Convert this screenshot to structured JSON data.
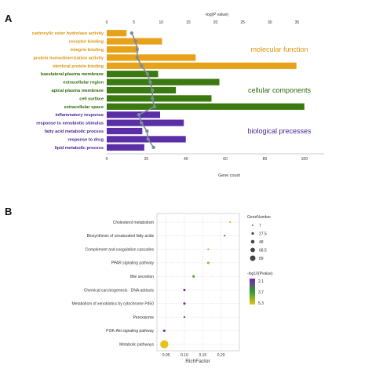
{
  "panels": {
    "a_label": "A",
    "b_label": "B"
  },
  "chart_data": [
    {
      "type": "bar",
      "orientation": "horizontal",
      "panel": "A",
      "categories": [
        "carboxylic ester hydrolase activity",
        "receptor binding",
        "integrin binding",
        "protein homodimerization activity",
        "identical protein binding",
        "basolateral plasma membrane",
        "extracellular region",
        "apical plasma membrane",
        "cell surface",
        "extracellular space",
        "inflammatory response",
        "response to xenobiotic stimulus",
        "fatty acid metabolic process",
        "response to drug",
        "lipid metabolic process"
      ],
      "groups": [
        {
          "name": "molecular function",
          "color": "#E8A21A",
          "label_color": "#D9960E",
          "start": 0,
          "end": 4
        },
        {
          "name": "cellular components",
          "color": "#3B7A10",
          "label_color": "#2E6A0A",
          "start": 5,
          "end": 9
        },
        {
          "name": "biological precesses",
          "color": "#5B2DA6",
          "label_color": "#4B2494",
          "start": 10,
          "end": 14
        }
      ],
      "values": [
        10,
        28,
        16,
        45,
        96,
        26,
        57,
        35,
        53,
        100,
        27,
        39,
        18,
        40,
        19
      ],
      "xlabel": "Gene count",
      "xlim": [
        0,
        110
      ],
      "xticks": [
        0,
        20,
        40,
        60,
        80,
        100
      ],
      "overlay": {
        "type": "line",
        "axis_label": "-log(P value)",
        "xlim": [
          0,
          40
        ],
        "xticks": [
          0,
          5,
          10,
          15,
          20,
          25,
          30,
          35
        ],
        "values": [
          4.6,
          5.3,
          5.6,
          5.6,
          6.4,
          7.5,
          8.0,
          8.4,
          8.4,
          8.8,
          5.9,
          6.4,
          7.4,
          7.6,
          8.6
        ],
        "color": "#7A8E99"
      }
    },
    {
      "type": "scatter",
      "panel": "B",
      "categories": [
        "Cholesterol metabolism",
        "Biosynthesis of unsaturated fatty acids",
        "Complement and coagulation cascades",
        "PPAR signaling pathway",
        "Bile secretion",
        "Chemical carcinogenesis - DNA adducts",
        "Metabolism of xenobiotics by cytochrome P450",
        "Peroxisome",
        "PI3K-Akt signaling pathway",
        "Metabolic pathways"
      ],
      "rich_factor": [
        0.225,
        0.21,
        0.165,
        0.165,
        0.125,
        0.1,
        0.1,
        0.1,
        0.045,
        0.045
      ],
      "gene_number": [
        7,
        7,
        7,
        8,
        8,
        8,
        8,
        7,
        8,
        89
      ],
      "neg_log10_pvalue": [
        6.0,
        3.5,
        5.5,
        5.5,
        4.5,
        2.3,
        2.4,
        2.6,
        2.3,
        6.2
      ],
      "xlabel": "RichFactor",
      "xticks": [
        0.05,
        0.1,
        0.15,
        0.2
      ],
      "xtick_labels": [
        "0.05",
        "0.10",
        "0.15",
        "0.20"
      ],
      "xlim": [
        0.025,
        0.25
      ],
      "size_legend": {
        "title": "GeneNumber",
        "values": [
          "7",
          "27.5",
          "48",
          "68.5",
          "89"
        ]
      },
      "color_legend": {
        "title": "-log10(Pvalue)",
        "labels": [
          "2.1",
          "3.7",
          "5.3"
        ],
        "range": [
          2.1,
          6.2
        ],
        "colors": [
          "#7B1FB8",
          "#2E9E2E",
          "#E8C21A"
        ]
      },
      "grid": true
    }
  ]
}
